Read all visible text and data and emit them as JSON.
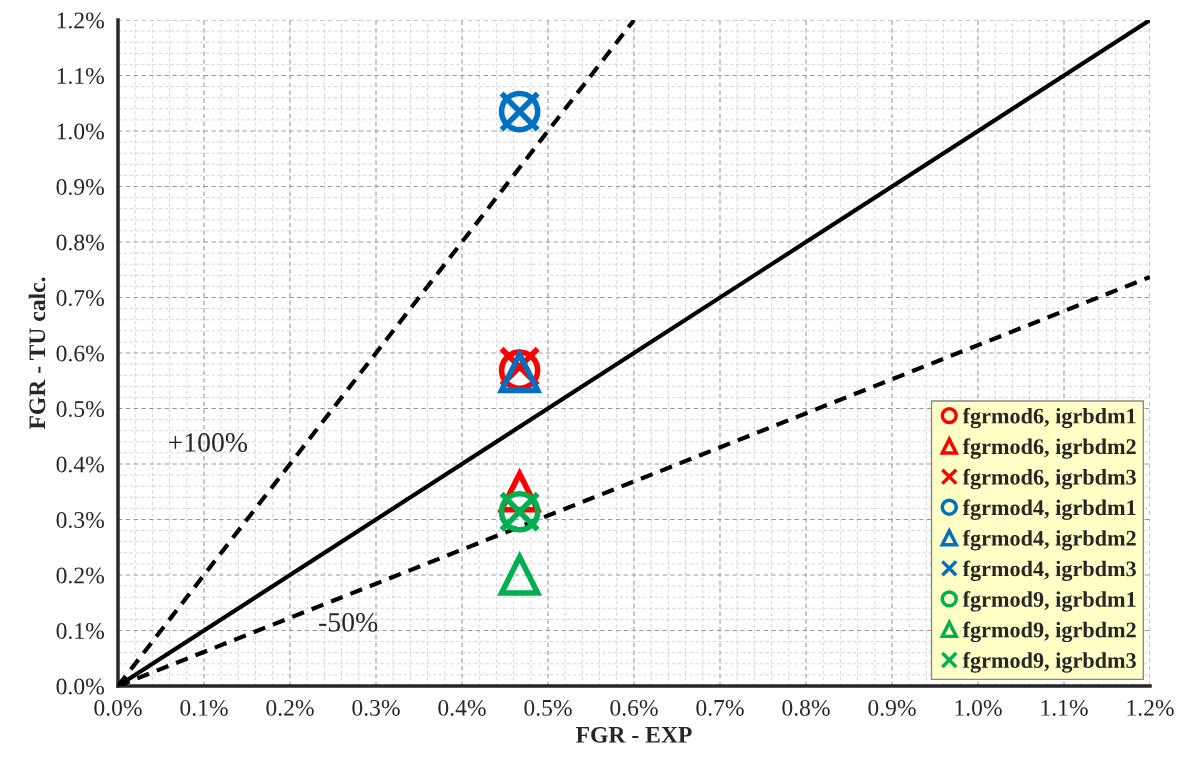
{
  "chart_data": {
    "type": "scatter",
    "xlabel": "FGR - EXP",
    "ylabel": "FGR - TU calc.",
    "x": [
      0.467
    ],
    "series": [
      {
        "name": "fgrmod6, igrbdm1",
        "color": "#ff0000",
        "marker": "circle",
        "values": [
          0.569
        ]
      },
      {
        "name": "fgrmod6, igrbdm2",
        "color": "#ff0000",
        "marker": "triangle",
        "values": [
          0.35
        ]
      },
      {
        "name": "fgrmod6, igrbdm3",
        "color": "#ff0000",
        "marker": "cross",
        "values": [
          0.575
        ]
      },
      {
        "name": "fgrmod4, igrbdm1",
        "color": "#0070c0",
        "marker": "circle",
        "values": [
          1.035
        ]
      },
      {
        "name": "fgrmod4, igrbdm2",
        "color": "#0070c0",
        "marker": "triangle",
        "values": [
          0.565
        ]
      },
      {
        "name": "fgrmod4, igrbdm3",
        "color": "#0070c0",
        "marker": "cross",
        "values": [
          1.035
        ]
      },
      {
        "name": "fgrmod9, igrbdm1",
        "color": "#00b050",
        "marker": "circle",
        "values": [
          0.314
        ]
      },
      {
        "name": "fgrmod9, igrbdm2",
        "color": "#00b050",
        "marker": "triangle",
        "values": [
          0.2
        ]
      },
      {
        "name": "fgrmod9, igrbdm3",
        "color": "#00b050",
        "marker": "cross",
        "values": [
          0.314
        ]
      },
      {
        "type": "line",
        "color": "#000000",
        "line_style": "solid",
        "x": [
          0,
          1.2
        ],
        "values": [
          0,
          1.2
        ]
      },
      {
        "type": "line",
        "color": "#000000",
        "line_style": "dashed",
        "x": [
          0,
          0.6
        ],
        "values": [
          0,
          1.2
        ]
      },
      {
        "type": "line",
        "color": "#000000",
        "line_style": "dashed",
        "x": [
          0,
          1.2
        ],
        "values": [
          0,
          0.737
        ]
      }
    ],
    "annotations": [
      "+100%",
      "-50%"
    ],
    "xlim": [
      0,
      1.2
    ],
    "ylim": [
      0,
      1.2
    ],
    "xticks": [
      {
        "value": 0,
        "label": "0.0%"
      },
      {
        "value": 0.1,
        "label": "0.1%"
      },
      {
        "value": 0.2,
        "label": "0.2%"
      },
      {
        "value": 0.3,
        "label": "0.3%"
      },
      {
        "value": 0.4,
        "label": "0.4%"
      },
      {
        "value": 0.5,
        "label": "0.5%"
      },
      {
        "value": 0.6,
        "label": "0.6%"
      },
      {
        "value": 0.7,
        "label": "0.7%"
      },
      {
        "value": 0.8,
        "label": "0.8%"
      },
      {
        "value": 0.9,
        "label": "0.9%"
      },
      {
        "value": 1.0,
        "label": "1.0%"
      },
      {
        "value": 1.1,
        "label": "1.1%"
      },
      {
        "value": 1.2,
        "label": "1.2%"
      }
    ],
    "yticks": [
      {
        "value": 0,
        "label": "0.0%"
      },
      {
        "value": 0.1,
        "label": "0.1%"
      },
      {
        "value": 0.2,
        "label": "0.2%"
      },
      {
        "value": 0.3,
        "label": "0.3%"
      },
      {
        "value": 0.4,
        "label": "0.4%"
      },
      {
        "value": 0.5,
        "label": "0.5%"
      },
      {
        "value": 0.6,
        "label": "0.6%"
      },
      {
        "value": 0.7,
        "label": "0.7%"
      },
      {
        "value": 0.8,
        "label": "0.8%"
      },
      {
        "value": 0.9,
        "label": "0.9%"
      },
      {
        "value": 1.0,
        "label": "1.0%"
      },
      {
        "value": 1.1,
        "label": "1.1%"
      },
      {
        "value": 1.2,
        "label": "1.2%"
      }
    ],
    "grid": true,
    "legend": "bottom right"
  }
}
